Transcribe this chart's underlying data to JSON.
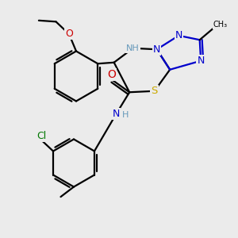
{
  "background_color": "#ebebeb",
  "atoms": {
    "colors": {
      "C": "#000000",
      "N": "#0000cc",
      "NH": "#6699bb",
      "O": "#cc0000",
      "S": "#ccaa00",
      "Cl": "#007700",
      "H": "#6699bb"
    }
  },
  "figsize": [
    3.0,
    3.0
  ],
  "dpi": 100
}
